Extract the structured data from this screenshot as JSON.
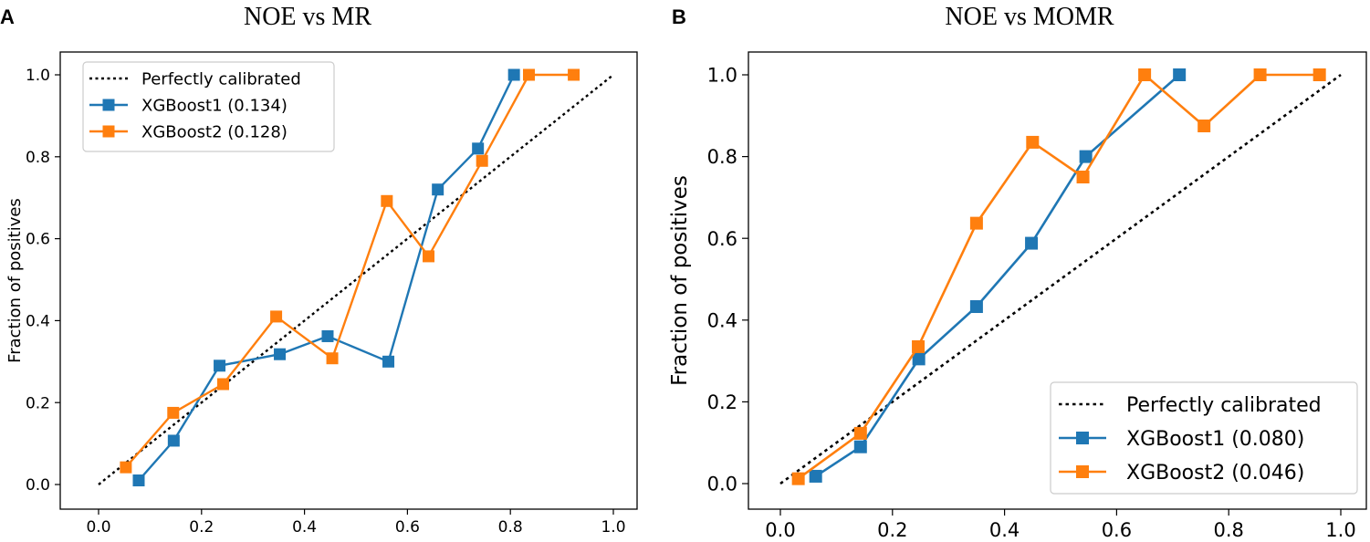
{
  "chart_data": [
    {
      "type": "line",
      "panel_label": "A",
      "title": "NOE vs MR",
      "xlabel": "",
      "ylabel": "Fraction of positives",
      "xlim": [
        0.0,
        1.0
      ],
      "ylim": [
        0.0,
        1.0
      ],
      "xticks": [
        "0.0",
        "0.2",
        "0.4",
        "0.6",
        "0.8",
        "1.0"
      ],
      "yticks": [
        "0.0",
        "0.2",
        "0.4",
        "0.6",
        "0.8",
        "1.0"
      ],
      "legend_position": "top-left",
      "reference": {
        "name": "Perfectly calibrated",
        "x": [
          0,
          1
        ],
        "y": [
          0,
          1
        ],
        "color": "#000000",
        "style": "dotted"
      },
      "series": [
        {
          "name": "XGBoost1 (0.134)",
          "color": "#1f77b4",
          "x": [
            0.078,
            0.146,
            0.235,
            0.352,
            0.445,
            0.563,
            0.659,
            0.737,
            0.807
          ],
          "y": [
            0.01,
            0.107,
            0.29,
            0.318,
            0.362,
            0.3,
            0.72,
            0.82,
            1.0
          ]
        },
        {
          "name": "XGBoost2 (0.128)",
          "color": "#ff7f0e",
          "x": [
            0.053,
            0.145,
            0.242,
            0.345,
            0.454,
            0.56,
            0.641,
            0.745,
            0.836,
            0.923
          ],
          "y": [
            0.042,
            0.175,
            0.245,
            0.41,
            0.308,
            0.692,
            0.557,
            0.79,
            1.0,
            1.0
          ]
        }
      ]
    },
    {
      "type": "line",
      "panel_label": "B",
      "title": "NOE vs MOMR",
      "xlabel": "",
      "ylabel": "Fraction of positives",
      "xlim": [
        0.0,
        1.0
      ],
      "ylim": [
        0.0,
        1.0
      ],
      "xticks": [
        "0.0",
        "0.2",
        "0.4",
        "0.6",
        "0.8",
        "1.0"
      ],
      "yticks": [
        "0.0",
        "0.2",
        "0.4",
        "0.6",
        "0.8",
        "1.0"
      ],
      "legend_position": "bottom-right",
      "reference": {
        "name": "Perfectly calibrated",
        "x": [
          0,
          1
        ],
        "y": [
          0,
          1
        ],
        "color": "#000000",
        "style": "dotted"
      },
      "series": [
        {
          "name": "XGBoost1 (0.080)",
          "color": "#1f77b4",
          "x": [
            0.063,
            0.143,
            0.247,
            0.35,
            0.448,
            0.545,
            0.712
          ],
          "y": [
            0.018,
            0.09,
            0.305,
            0.433,
            0.588,
            0.8,
            1.0
          ]
        },
        {
          "name": "XGBoost2 (0.046)",
          "color": "#ff7f0e",
          "x": [
            0.032,
            0.143,
            0.246,
            0.35,
            0.45,
            0.54,
            0.65,
            0.756,
            0.856,
            0.962
          ],
          "y": [
            0.012,
            0.123,
            0.335,
            0.637,
            0.835,
            0.75,
            1.0,
            0.875,
            1.0,
            1.0
          ]
        }
      ]
    }
  ]
}
